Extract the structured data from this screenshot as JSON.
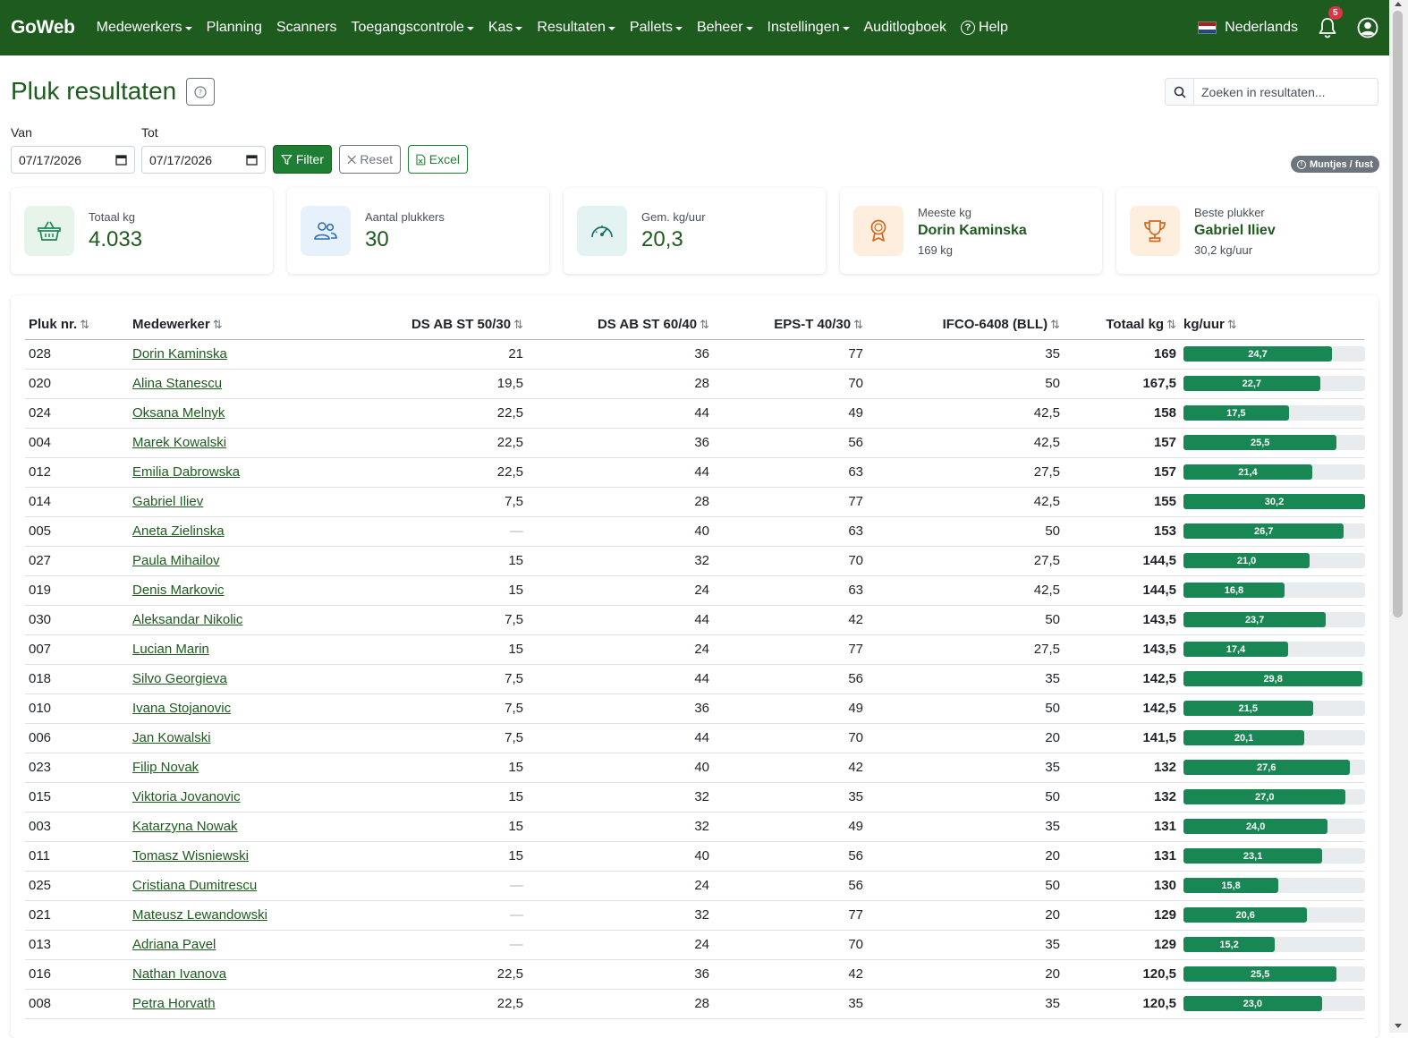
{
  "app": {
    "brand": "GoWeb",
    "nav": [
      {
        "label": "Medewerkers",
        "dropdown": true
      },
      {
        "label": "Planning",
        "dropdown": false
      },
      {
        "label": "Scanners",
        "dropdown": false
      },
      {
        "label": "Toegangscontrole",
        "dropdown": true
      },
      {
        "label": "Kas",
        "dropdown": true
      },
      {
        "label": "Resultaten",
        "dropdown": true
      },
      {
        "label": "Pallets",
        "dropdown": true
      },
      {
        "label": "Beheer",
        "dropdown": true
      },
      {
        "label": "Instellingen",
        "dropdown": true
      },
      {
        "label": "Auditlogboek",
        "dropdown": false
      }
    ],
    "help_label": "Help",
    "language": "Nederlands",
    "notification_count": "5",
    "colors": {
      "navbar": "#1e5b1e",
      "accent": "#198754",
      "badge": "#dc3545"
    }
  },
  "page": {
    "title": "Pluk resultaten",
    "search_placeholder": "Zoeken in resultaten...",
    "from_label": "Van",
    "to_label": "Tot",
    "from_value": "07/17/2026",
    "to_value": "07/17/2026",
    "filter_label": "Filter",
    "reset_label": "Reset",
    "excel_label": "Excel",
    "toggle_label": "Muntjes / fust"
  },
  "stats": {
    "total_kg": {
      "label": "Totaal kg",
      "value": "4.033",
      "icon": "basket-icon"
    },
    "pickers": {
      "label": "Aantal plukkers",
      "value": "30",
      "icon": "users-icon"
    },
    "avg": {
      "label": "Gem. kg/uur",
      "value": "20,3",
      "icon": "speedometer-icon"
    },
    "most": {
      "label": "Meeste kg",
      "name": "Dorin Kaminska",
      "sub": "169 kg",
      "icon": "award-icon"
    },
    "best": {
      "label": "Beste plukker",
      "name": "Gabriel Iliev",
      "sub": "30,2 kg/uur",
      "icon": "trophy-icon"
    }
  },
  "table": {
    "columns": [
      "Pluk nr.",
      "Medewerker",
      "DS AB ST 50/30",
      "DS AB ST 60/40",
      "EPS-T 40/30",
      "IFCO-6408 (BLL)",
      "Totaal kg",
      "kg/uur"
    ],
    "rate_max": 30.2,
    "rows": [
      {
        "nr": "028",
        "name": "Dorin Kaminska",
        "c1": "21",
        "c2": "36",
        "c3": "77",
        "c4": "35",
        "total": "169",
        "rate": 24.7,
        "rate_label": "24,7"
      },
      {
        "nr": "020",
        "name": "Alina Stanescu",
        "c1": "19,5",
        "c2": "28",
        "c3": "70",
        "c4": "50",
        "total": "167,5",
        "rate": 22.7,
        "rate_label": "22,7"
      },
      {
        "nr": "024",
        "name": "Oksana Melnyk",
        "c1": "22,5",
        "c2": "44",
        "c3": "49",
        "c4": "42,5",
        "total": "158",
        "rate": 17.5,
        "rate_label": "17,5"
      },
      {
        "nr": "004",
        "name": "Marek Kowalski",
        "c1": "22,5",
        "c2": "36",
        "c3": "56",
        "c4": "42,5",
        "total": "157",
        "rate": 25.5,
        "rate_label": "25,5"
      },
      {
        "nr": "012",
        "name": "Emilia Dabrowska",
        "c1": "22,5",
        "c2": "44",
        "c3": "63",
        "c4": "27,5",
        "total": "157",
        "rate": 21.4,
        "rate_label": "21,4"
      },
      {
        "nr": "014",
        "name": "Gabriel Iliev",
        "c1": "7,5",
        "c2": "28",
        "c3": "77",
        "c4": "42,5",
        "total": "155",
        "rate": 30.2,
        "rate_label": "30,2"
      },
      {
        "nr": "005",
        "name": "Aneta Zielinska",
        "c1": "—",
        "c2": "40",
        "c3": "63",
        "c4": "50",
        "total": "153",
        "rate": 26.7,
        "rate_label": "26,7"
      },
      {
        "nr": "027",
        "name": "Paula Mihailov",
        "c1": "15",
        "c2": "32",
        "c3": "70",
        "c4": "27,5",
        "total": "144,5",
        "rate": 21.0,
        "rate_label": "21,0"
      },
      {
        "nr": "019",
        "name": "Denis Markovic",
        "c1": "15",
        "c2": "24",
        "c3": "63",
        "c4": "42,5",
        "total": "144,5",
        "rate": 16.8,
        "rate_label": "16,8"
      },
      {
        "nr": "030",
        "name": "Aleksandar Nikolic",
        "c1": "7,5",
        "c2": "44",
        "c3": "42",
        "c4": "50",
        "total": "143,5",
        "rate": 23.7,
        "rate_label": "23,7"
      },
      {
        "nr": "007",
        "name": "Lucian Marin",
        "c1": "15",
        "c2": "24",
        "c3": "77",
        "c4": "27,5",
        "total": "143,5",
        "rate": 17.4,
        "rate_label": "17,4"
      },
      {
        "nr": "018",
        "name": "Silvo Georgieva",
        "c1": "7,5",
        "c2": "44",
        "c3": "56",
        "c4": "35",
        "total": "142,5",
        "rate": 29.8,
        "rate_label": "29,8"
      },
      {
        "nr": "010",
        "name": "Ivana Stojanovic",
        "c1": "7,5",
        "c2": "36",
        "c3": "49",
        "c4": "50",
        "total": "142,5",
        "rate": 21.5,
        "rate_label": "21,5"
      },
      {
        "nr": "006",
        "name": "Jan Kowalski",
        "c1": "7,5",
        "c2": "44",
        "c3": "70",
        "c4": "20",
        "total": "141,5",
        "rate": 20.1,
        "rate_label": "20,1"
      },
      {
        "nr": "023",
        "name": "Filip Novak",
        "c1": "15",
        "c2": "40",
        "c3": "42",
        "c4": "35",
        "total": "132",
        "rate": 27.6,
        "rate_label": "27,6"
      },
      {
        "nr": "015",
        "name": "Viktoria Jovanovic",
        "c1": "15",
        "c2": "32",
        "c3": "35",
        "c4": "50",
        "total": "132",
        "rate": 27.0,
        "rate_label": "27,0"
      },
      {
        "nr": "003",
        "name": "Katarzyna Nowak",
        "c1": "15",
        "c2": "32",
        "c3": "49",
        "c4": "35",
        "total": "131",
        "rate": 24.0,
        "rate_label": "24,0"
      },
      {
        "nr": "011",
        "name": "Tomasz Wisniewski",
        "c1": "15",
        "c2": "40",
        "c3": "56",
        "c4": "20",
        "total": "131",
        "rate": 23.1,
        "rate_label": "23,1"
      },
      {
        "nr": "025",
        "name": "Cristiana Dumitrescu",
        "c1": "—",
        "c2": "24",
        "c3": "56",
        "c4": "50",
        "total": "130",
        "rate": 15.8,
        "rate_label": "15,8"
      },
      {
        "nr": "021",
        "name": "Mateusz Lewandowski",
        "c1": "—",
        "c2": "32",
        "c3": "77",
        "c4": "20",
        "total": "129",
        "rate": 20.6,
        "rate_label": "20,6"
      },
      {
        "nr": "013",
        "name": "Adriana Pavel",
        "c1": "—",
        "c2": "24",
        "c3": "70",
        "c4": "35",
        "total": "129",
        "rate": 15.2,
        "rate_label": "15,2"
      },
      {
        "nr": "016",
        "name": "Nathan Ivanova",
        "c1": "22,5",
        "c2": "36",
        "c3": "42",
        "c4": "20",
        "total": "120,5",
        "rate": 25.5,
        "rate_label": "25,5"
      },
      {
        "nr": "008",
        "name": "Petra Horvath",
        "c1": "22,5",
        "c2": "28",
        "c3": "35",
        "c4": "35",
        "total": "120,5",
        "rate": 23.0,
        "rate_label": "23,0"
      }
    ]
  }
}
